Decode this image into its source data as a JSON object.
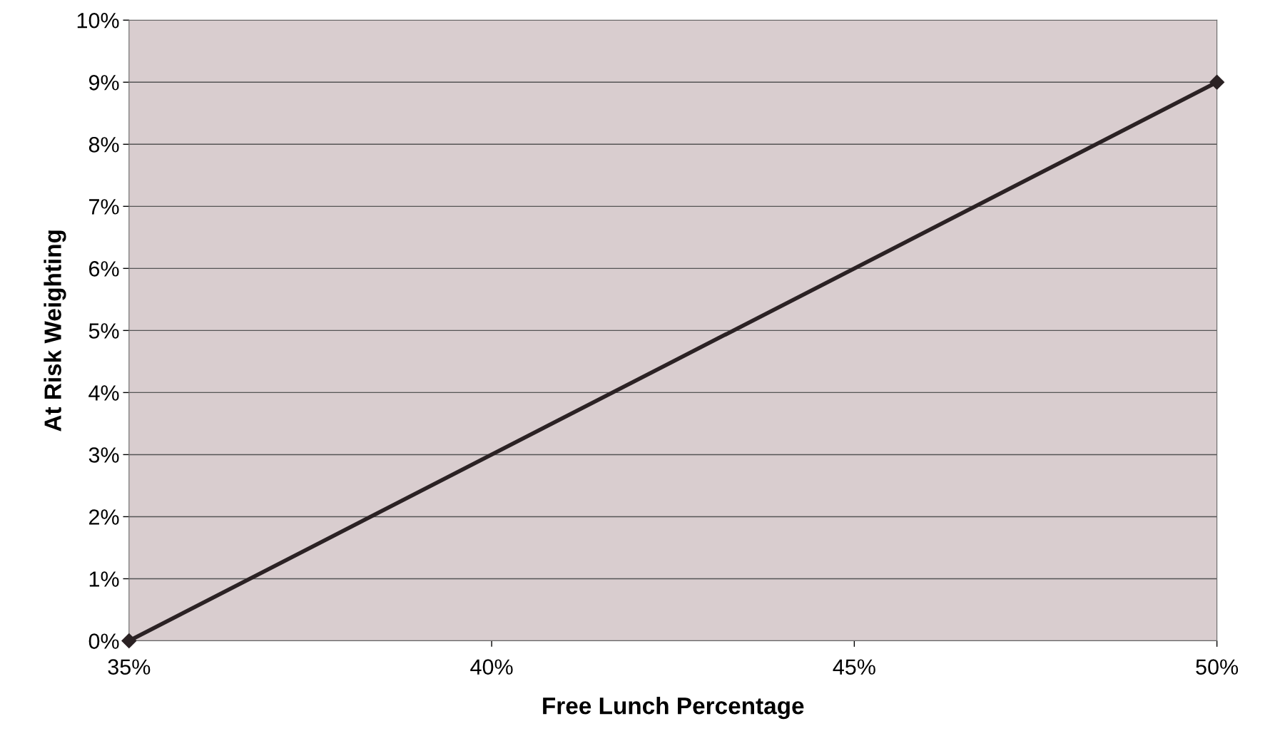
{
  "chart_data": {
    "type": "line",
    "xlabel": "Free Lunch Percentage",
    "ylabel": "At Risk Weighting",
    "x": [
      35,
      50
    ],
    "series": [
      {
        "color": "#2b2224",
        "values": [
          0,
          9
        ]
      }
    ],
    "xlim": [
      35,
      50
    ],
    "ylim": [
      0,
      10
    ],
    "xticks": [
      {
        "value": 35,
        "label": "35%"
      },
      {
        "value": 40,
        "label": "40%"
      },
      {
        "value": 45,
        "label": "45%"
      },
      {
        "value": 50,
        "label": "50%"
      }
    ],
    "yticks": [
      {
        "value": 0,
        "label": "0%"
      },
      {
        "value": 1,
        "label": "1%"
      },
      {
        "value": 2,
        "label": "2%"
      },
      {
        "value": 3,
        "label": "3%"
      },
      {
        "value": 4,
        "label": "4%"
      },
      {
        "value": 5,
        "label": "5%"
      },
      {
        "value": 6,
        "label": "6%"
      },
      {
        "value": 7,
        "label": "7%"
      },
      {
        "value": 8,
        "label": "8%"
      },
      {
        "value": 9,
        "label": "9%"
      },
      {
        "value": 10,
        "label": "10%"
      }
    ],
    "grid": "y",
    "marker": "diamond",
    "line_style": "solid"
  }
}
